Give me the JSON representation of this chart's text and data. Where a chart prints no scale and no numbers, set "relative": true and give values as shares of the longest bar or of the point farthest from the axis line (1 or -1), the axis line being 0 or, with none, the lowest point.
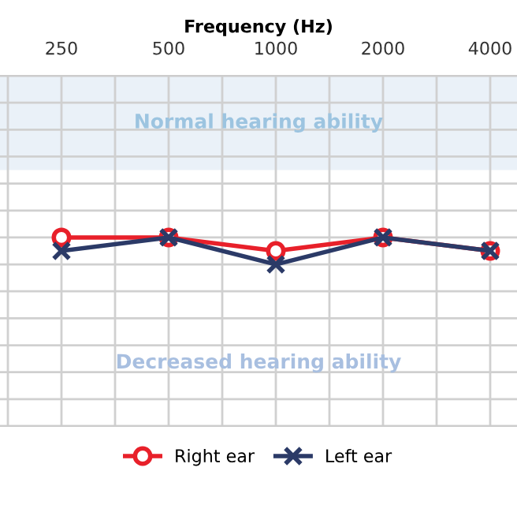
{
  "chart_data": {
    "type": "line",
    "xlabel": "Frequency (Hz)",
    "log": "x",
    "relative": true,
    "x": [
      250,
      500,
      1000,
      2000,
      4000
    ],
    "xlim": [
      168,
      4757
    ],
    "xticks": [
      250,
      500,
      1000,
      2000,
      4000
    ],
    "series": [
      {
        "name": "Right ear",
        "color": "#e8202a",
        "marker": "circle",
        "values": [
          1,
          1,
          0.5,
          1,
          0.5
        ]
      },
      {
        "name": "Left ear",
        "color": "#2b3a67",
        "marker": "cross",
        "values": [
          0.5,
          1,
          0,
          1,
          0.5
        ]
      }
    ],
    "bands": [
      {
        "axis": "y",
        "from": 3.5,
        "to": 7,
        "label": "Normal hearing ability",
        "color": "#eaf1f8"
      }
    ],
    "annotations": [
      "Decreased hearing ability"
    ],
    "grid": true,
    "legend": "bottom"
  }
}
